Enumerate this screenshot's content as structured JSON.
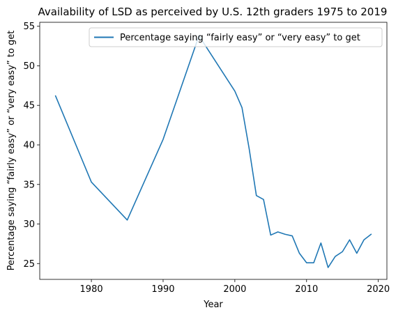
{
  "chart_data": {
    "type": "line",
    "title": "Availability of LSD as perceived by U.S. 12th graders 1975 to 2019",
    "xlabel": "Year",
    "ylabel": "Percentage saying “fairly easy” or “very easy” to get",
    "xlim": [
      1972.8,
      2021.2
    ],
    "ylim": [
      23.0,
      55.5
    ],
    "xticks": [
      1980,
      1990,
      2000,
      2010,
      2020
    ],
    "yticks": [
      25,
      30,
      35,
      40,
      45,
      50,
      55
    ],
    "legend_position": "top-right",
    "grid": false,
    "colors": {
      "series": "#1f77b4"
    },
    "series": [
      {
        "name": "Percentage saying “fairly easy” or “very easy” to get",
        "x": [
          1975,
          1980,
          1985,
          1990,
          1995,
          2000,
          2001,
          2002,
          2003,
          2004,
          2005,
          2006,
          2007,
          2008,
          2009,
          2010,
          2011,
          2012,
          2013,
          2014,
          2015,
          2016,
          2017,
          2018,
          2019
        ],
        "y": [
          46.2,
          35.3,
          30.5,
          40.7,
          53.8,
          46.8,
          44.7,
          39.5,
          33.6,
          33.1,
          28.6,
          29.0,
          28.7,
          28.5,
          26.3,
          25.1,
          25.1,
          27.6,
          24.5,
          25.9,
          26.5,
          28.0,
          26.3,
          28.0,
          28.7
        ]
      }
    ]
  }
}
